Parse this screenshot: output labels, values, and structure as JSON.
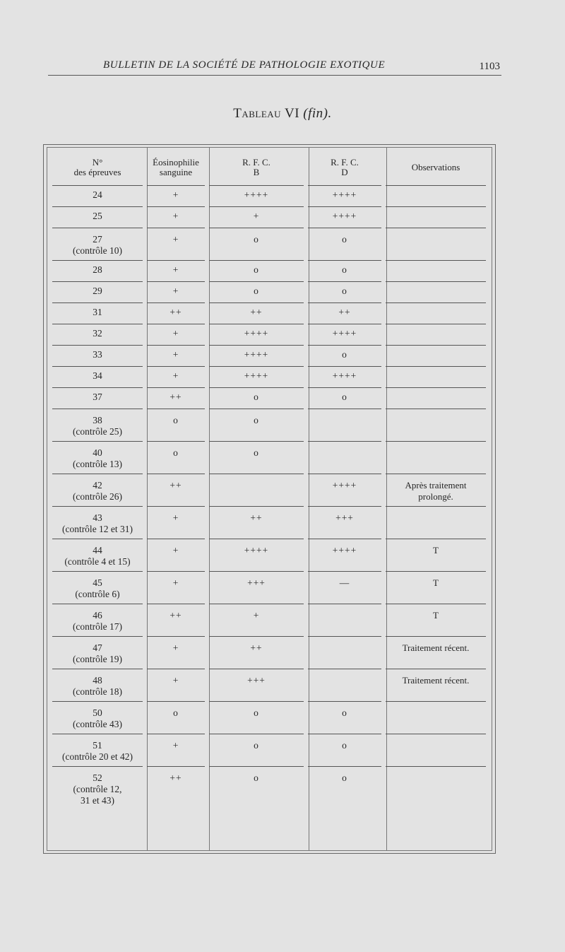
{
  "header": {
    "journal_title": "BULLETIN DE LA SOCIÉTÉ DE PATHOLOGIE EXOTIQUE",
    "page_number": "1103"
  },
  "table": {
    "title_smallcaps": "Tableau",
    "title_number": "VI",
    "title_suffix": "(fin).",
    "columns": [
      {
        "line1": "N°",
        "line2": "des épreuves"
      },
      {
        "line1": "Éosinophilie",
        "line2": "sanguine"
      },
      {
        "line1": "R. F. C.",
        "line2": "B"
      },
      {
        "line1": "R. F. C.",
        "line2": "D"
      },
      {
        "line1": "Observations",
        "line2": ""
      }
    ],
    "rows": [
      {
        "n": "24",
        "ctrl": "",
        "eos": "+",
        "b": "++++",
        "d": "++++",
        "obs": "",
        "obs2": ""
      },
      {
        "n": "25",
        "ctrl": "",
        "eos": "+",
        "b": "+",
        "d": "++++",
        "obs": "",
        "obs2": ""
      },
      {
        "n": "27",
        "ctrl": "(contrôle 10)",
        "eos": "+",
        "b": "o",
        "d": "o",
        "obs": "",
        "obs2": ""
      },
      {
        "n": "28",
        "ctrl": "",
        "eos": "+",
        "b": "o",
        "d": "o",
        "obs": "",
        "obs2": ""
      },
      {
        "n": "29",
        "ctrl": "",
        "eos": "+",
        "b": "o",
        "d": "o",
        "obs": "",
        "obs2": ""
      },
      {
        "n": "31",
        "ctrl": "",
        "eos": "++",
        "b": "++",
        "d": "++",
        "obs": "",
        "obs2": ""
      },
      {
        "n": "32",
        "ctrl": "",
        "eos": "+",
        "b": "++++",
        "d": "++++",
        "obs": "",
        "obs2": ""
      },
      {
        "n": "33",
        "ctrl": "",
        "eos": "+",
        "b": "++++",
        "d": "o",
        "obs": "",
        "obs2": ""
      },
      {
        "n": "34",
        "ctrl": "",
        "eos": "+",
        "b": "++++",
        "d": "++++",
        "obs": "",
        "obs2": ""
      },
      {
        "n": "37",
        "ctrl": "",
        "eos": "++",
        "b": "o",
        "d": "o",
        "obs": "",
        "obs2": ""
      },
      {
        "n": "38",
        "ctrl": "(contrôle 25)",
        "eos": "o",
        "b": "o",
        "d": "",
        "obs": "",
        "obs2": ""
      },
      {
        "n": "40",
        "ctrl": "(contrôle 13)",
        "eos": "o",
        "b": "o",
        "d": "",
        "obs": "",
        "obs2": ""
      },
      {
        "n": "42",
        "ctrl": "(contrôle 26)",
        "eos": "++",
        "b": "",
        "d": "++++",
        "obs": "Après traitement",
        "obs2": "prolongé."
      },
      {
        "n": "43",
        "ctrl": "(contrôle 12 et 31)",
        "eos": "+",
        "b": "++",
        "d": "+++",
        "obs": "",
        "obs2": ""
      },
      {
        "n": "44",
        "ctrl": "(contrôle 4 et 15)",
        "eos": "+",
        "b": "++++",
        "d": "++++",
        "obs": "T",
        "obs2": ""
      },
      {
        "n": "45",
        "ctrl": "(contrôle 6)",
        "eos": "+",
        "b": "+++",
        "d": "—",
        "obs": "T",
        "obs2": ""
      },
      {
        "n": "46",
        "ctrl": "(contrôle 17)",
        "eos": "++",
        "b": "+",
        "d": "",
        "obs": "T",
        "obs2": ""
      },
      {
        "n": "47",
        "ctrl": "(contrôle 19)",
        "eos": "+",
        "b": "++",
        "d": "",
        "obs": "Traitement récent.",
        "obs2": ""
      },
      {
        "n": "48",
        "ctrl": "(contrôle 18)",
        "eos": "+",
        "b": "+++",
        "d": "",
        "obs": "Traitement récent.",
        "obs2": ""
      },
      {
        "n": "50",
        "ctrl": "(contrôle 43)",
        "eos": "o",
        "b": "o",
        "d": "o",
        "obs": "",
        "obs2": ""
      },
      {
        "n": "51",
        "ctrl": "(contrôle 20 et 42)",
        "eos": "+",
        "b": "o",
        "d": "o",
        "obs": "",
        "obs2": ""
      },
      {
        "n": "52",
        "ctrl": "(contrôle 12,",
        "ctrl2": "31 et 43)",
        "eos": "++",
        "b": "o",
        "d": "o",
        "obs": "",
        "obs2": ""
      }
    ]
  }
}
